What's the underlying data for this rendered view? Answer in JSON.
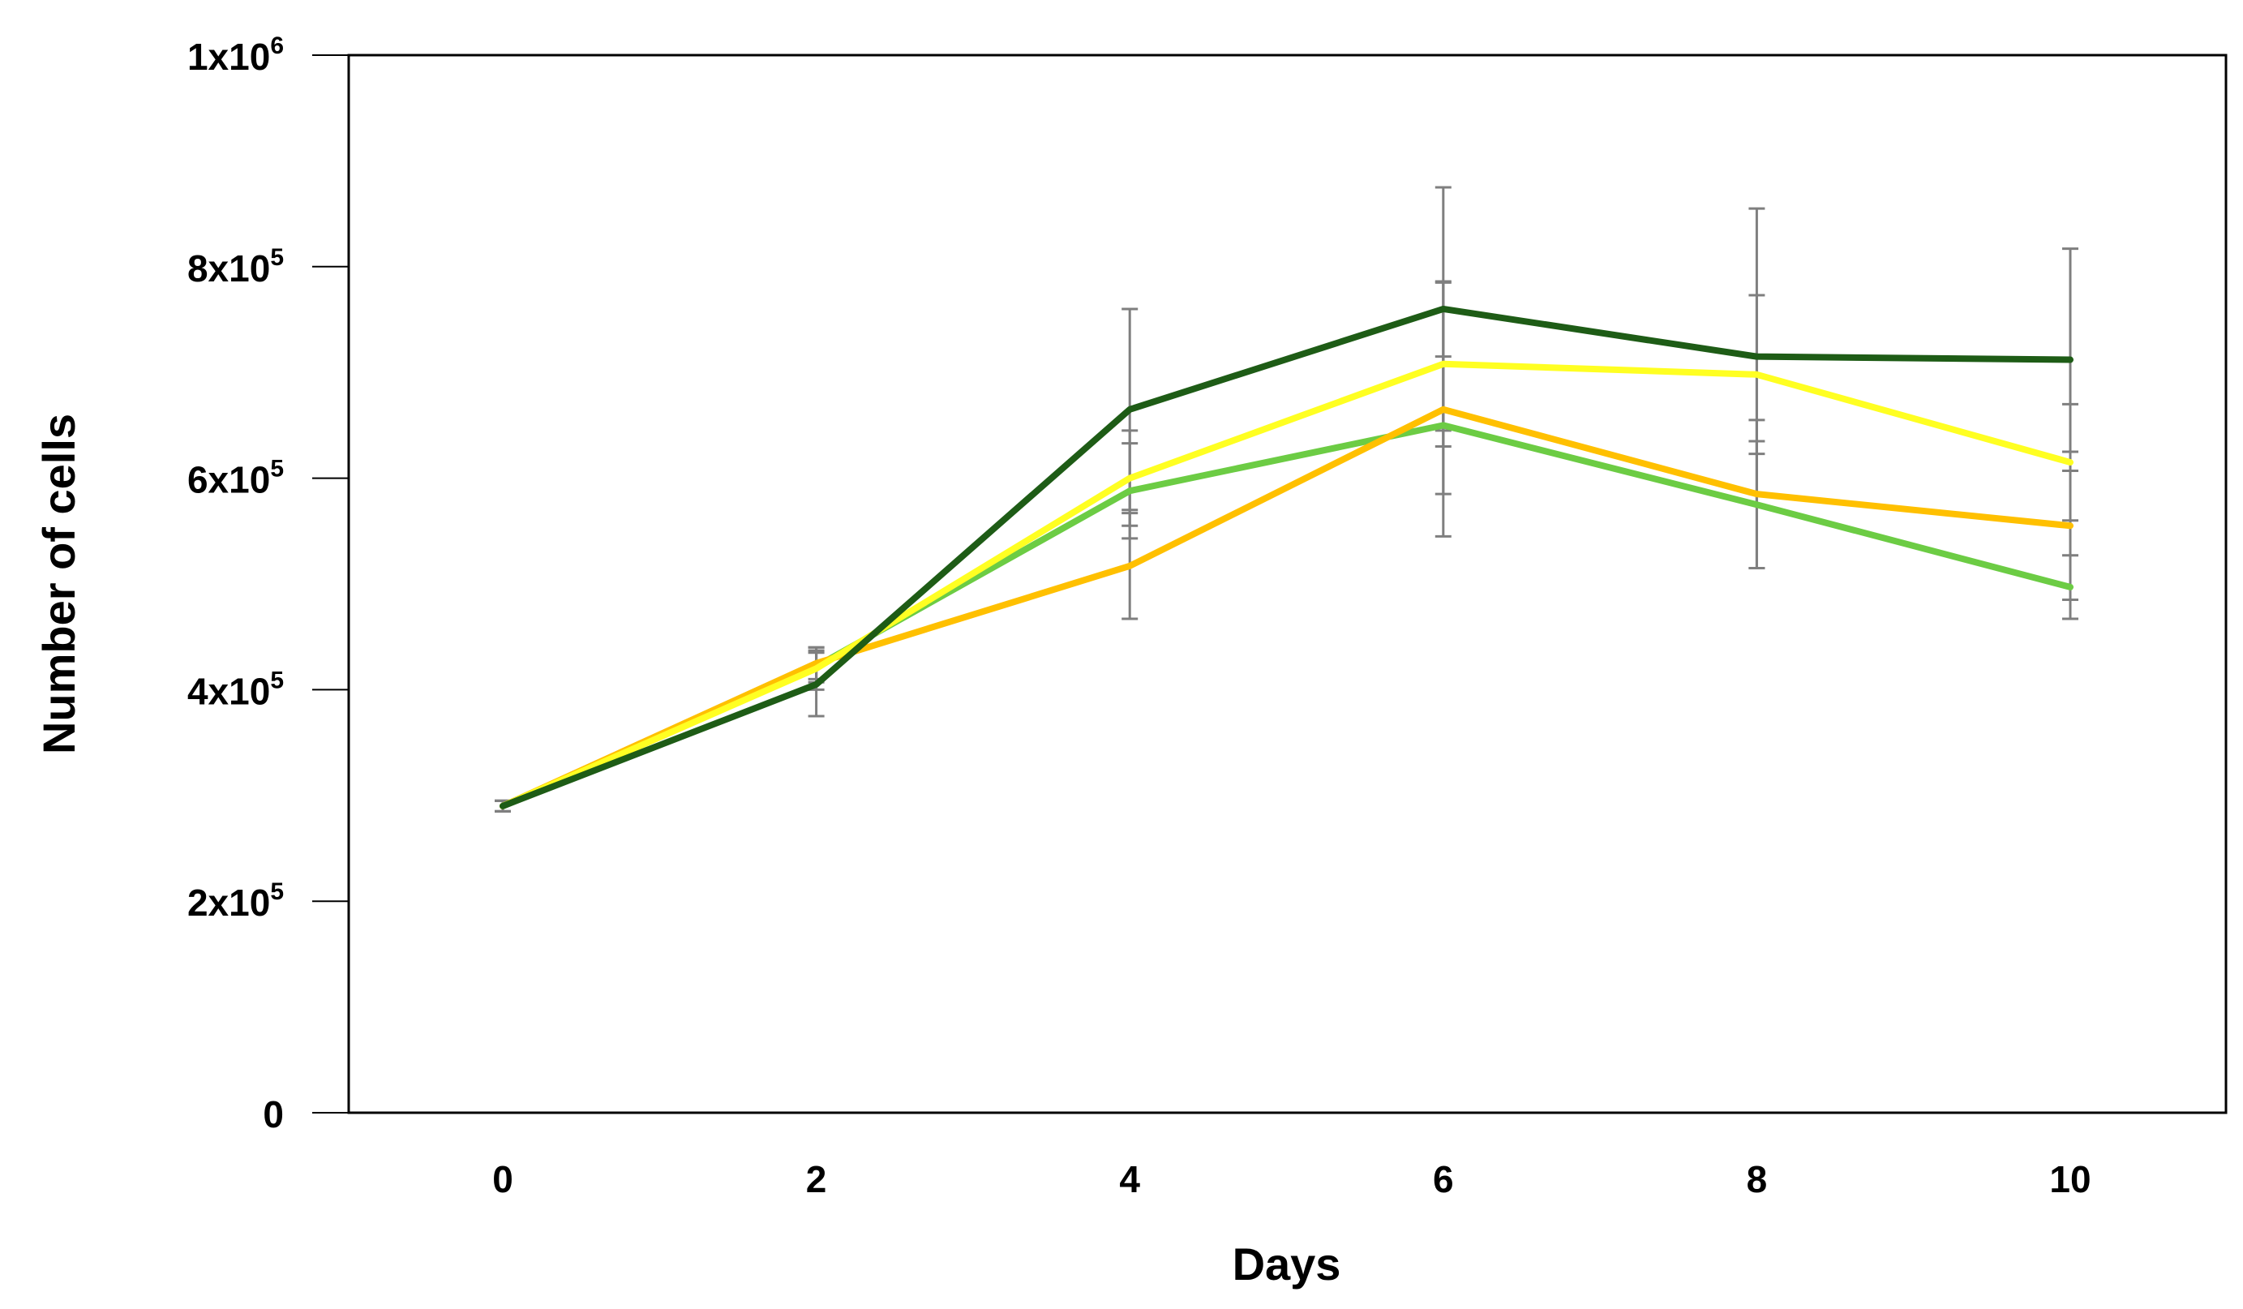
{
  "chart_data": {
    "type": "line",
    "title": "",
    "xlabel": "Days",
    "ylabel": "Number of cells",
    "x": [
      0,
      2,
      4,
      6,
      8,
      10
    ],
    "x_tick_labels": [
      "0",
      "2",
      "4",
      "6",
      "8",
      "10"
    ],
    "ylim": [
      0,
      1000000
    ],
    "y_ticks": [
      {
        "value": 0,
        "mantissa": "0",
        "exp": ""
      },
      {
        "value": 200000,
        "mantissa": "2x10",
        "exp": "5"
      },
      {
        "value": 400000,
        "mantissa": "4x10",
        "exp": "5"
      },
      {
        "value": 600000,
        "mantissa": "6x10",
        "exp": "5"
      },
      {
        "value": 800000,
        "mantissa": "8x10",
        "exp": "5"
      },
      {
        "value": 1000000,
        "mantissa": "1x10",
        "exp": "6"
      }
    ],
    "grid": false,
    "legend": "none",
    "series": [
      {
        "name": "dark green",
        "color": "#1e5c16",
        "values": [
          290000,
          405000,
          665000,
          760000,
          715000,
          712000
        ],
        "errors": [
          5000,
          30000,
          95000,
          115000,
          140000,
          105000
        ]
      },
      {
        "name": "yellow",
        "color": "#ffff22",
        "values": [
          290000,
          420000,
          600000,
          708000,
          698000,
          615000
        ],
        "errors": [
          5000,
          20000,
          45000,
          78000,
          75000,
          55000
        ]
      },
      {
        "name": "orange",
        "color": "#ffc000",
        "values": [
          290000,
          425000,
          517000,
          665000,
          585000,
          555000
        ],
        "errors": [
          5000,
          15000,
          50000,
          120000,
          70000,
          70000
        ]
      },
      {
        "name": "light green",
        "color": "#6ccc44",
        "values": [
          290000,
          422000,
          588000,
          650000,
          575000,
          497000
        ],
        "errors": [
          5000,
          15000,
          45000,
          65000,
          60000,
          30000
        ]
      }
    ]
  }
}
